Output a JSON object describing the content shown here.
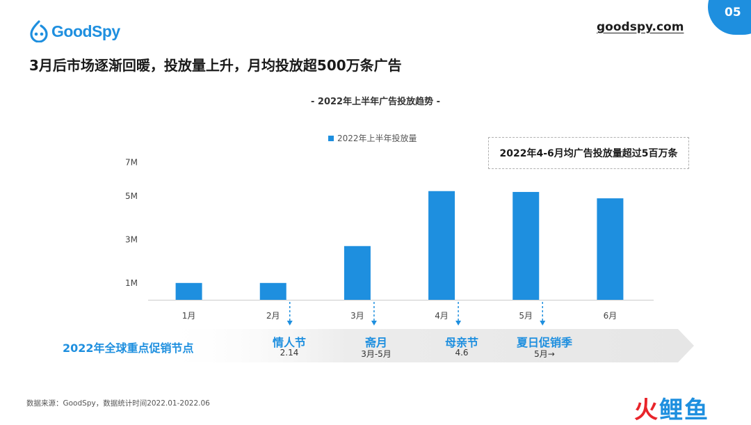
{
  "brand": {
    "logo_text": "GoodSpy",
    "site": "goodspy.com",
    "page_number": "05"
  },
  "headline": "3月后市场逐渐回暖，投放量上升，月均投放超500万条广告",
  "callout": "2022年4-6月均广告投放量超过5百万条",
  "chart_data": {
    "type": "bar",
    "title": "- 2022年上半年广告投放趋势 -",
    "categories": [
      "1月",
      "2月",
      "3月",
      "4月",
      "5月",
      "6月"
    ],
    "series": [
      {
        "name": "2022年上半年投放量",
        "values": [
          1.0,
          1.0,
          2.7,
          5.3,
          5.25,
          4.9
        ],
        "color": "#1e8fdf"
      }
    ],
    "y_ticks": [
      {
        "value": 1,
        "label": "1M"
      },
      {
        "value": 3,
        "label": "3M"
      },
      {
        "value": 5,
        "label": "5M"
      },
      {
        "value": 7,
        "label": "7M"
      }
    ],
    "ylim": [
      0,
      7
    ],
    "unit": "M",
    "grid": false,
    "legend_position": "top-center"
  },
  "promotions": {
    "title": "2022年全球重点促销节点",
    "items": [
      {
        "name": "情人节",
        "date": "2.14"
      },
      {
        "name": "斋月",
        "date": "3月-5月"
      },
      {
        "name": "母亲节",
        "date": "4.6"
      },
      {
        "name": "夏日促销季",
        "date": "5月→"
      }
    ]
  },
  "footer": {
    "source": "数据来源：GoodSpy，数据统计时间2022.01-2022.06"
  },
  "watermark": {
    "first_char": "火",
    "rest": "鲤鱼"
  },
  "colors": {
    "accent": "#1e8fdf",
    "axis": "#cccccc",
    "band": "#ececec"
  }
}
